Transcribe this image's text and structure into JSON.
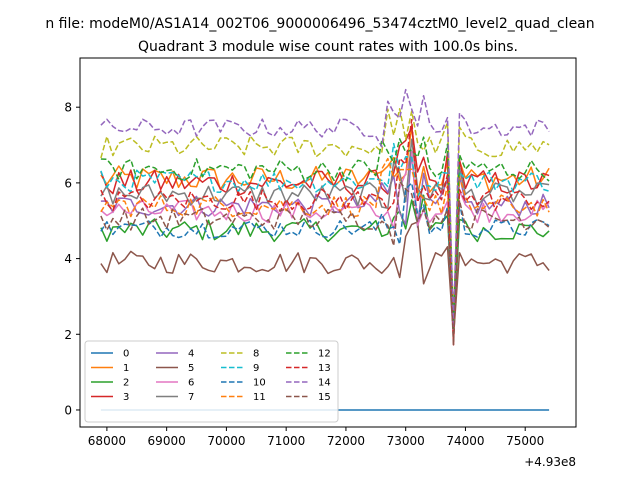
{
  "chart_data": {
    "type": "line",
    "suptitle": "n file: modeM0/AS1A14_002T06_9000006496_53474cztM0_level2_quad_clean",
    "title": "Quadrant 3 module wise count rates with 100.0s bins.",
    "xlabel": "",
    "ylabel": "",
    "x_offset_label": "+4.93e8",
    "xlim": [
      67550,
      75850
    ],
    "ylim": [
      -0.45,
      9.3
    ],
    "xticks": [
      68000,
      69000,
      70000,
      71000,
      72000,
      73000,
      74000,
      75000
    ],
    "xtick_labels": [
      "68000",
      "69000",
      "70000",
      "71000",
      "72000",
      "73000",
      "74000",
      "75000"
    ],
    "yticks": [
      0,
      2,
      4,
      6,
      8
    ],
    "ytick_labels": [
      "0",
      "2",
      "4",
      "6",
      "8"
    ],
    "grid": false,
    "legend_position": "bottom-left",
    "legend_columns": 4,
    "x_range": [
      67900,
      75400
    ],
    "x_step": 100,
    "gap": {
      "x": 73800,
      "min": 1.7
    },
    "series": [
      {
        "name": "0",
        "color": "#1f77b4",
        "style": "solid",
        "level": 0.0,
        "amp": 0.0
      },
      {
        "name": "1",
        "color": "#ff7f0e",
        "style": "solid",
        "level": 6.1,
        "amp": 0.35
      },
      {
        "name": "2",
        "color": "#2ca02c",
        "style": "solid",
        "level": 4.75,
        "amp": 0.3
      },
      {
        "name": "3",
        "color": "#d62728",
        "style": "solid",
        "level": 6.0,
        "amp": 0.35
      },
      {
        "name": "4",
        "color": "#9467bd",
        "style": "solid",
        "level": 5.4,
        "amp": 0.3
      },
      {
        "name": "5",
        "color": "#8c564b",
        "style": "solid",
        "level": 3.9,
        "amp": 0.3
      },
      {
        "name": "6",
        "color": "#e377c2",
        "style": "solid",
        "level": 5.25,
        "amp": 0.3
      },
      {
        "name": "7",
        "color": "#7f7f7f",
        "style": "solid",
        "level": 5.7,
        "amp": 0.3
      },
      {
        "name": "8",
        "color": "#bcbd22",
        "style": "dashed",
        "level": 6.95,
        "amp": 0.3
      },
      {
        "name": "9",
        "color": "#17becf",
        "style": "dashed",
        "level": 6.05,
        "amp": 0.3
      },
      {
        "name": "10",
        "color": "#1f77b4",
        "style": "dashed",
        "level": 4.8,
        "amp": 0.25
      },
      {
        "name": "11",
        "color": "#ff7f0e",
        "style": "dashed",
        "level": 5.4,
        "amp": 0.3
      },
      {
        "name": "12",
        "color": "#2ca02c",
        "style": "dashed",
        "level": 6.35,
        "amp": 0.3
      },
      {
        "name": "13",
        "color": "#d62728",
        "style": "dashed",
        "level": 5.55,
        "amp": 0.3
      },
      {
        "name": "14",
        "color": "#9467bd",
        "style": "dashed",
        "level": 7.45,
        "amp": 0.25
      },
      {
        "name": "15",
        "color": "#8c564b",
        "style": "dashed",
        "level": 5.05,
        "amp": 0.3
      }
    ]
  }
}
